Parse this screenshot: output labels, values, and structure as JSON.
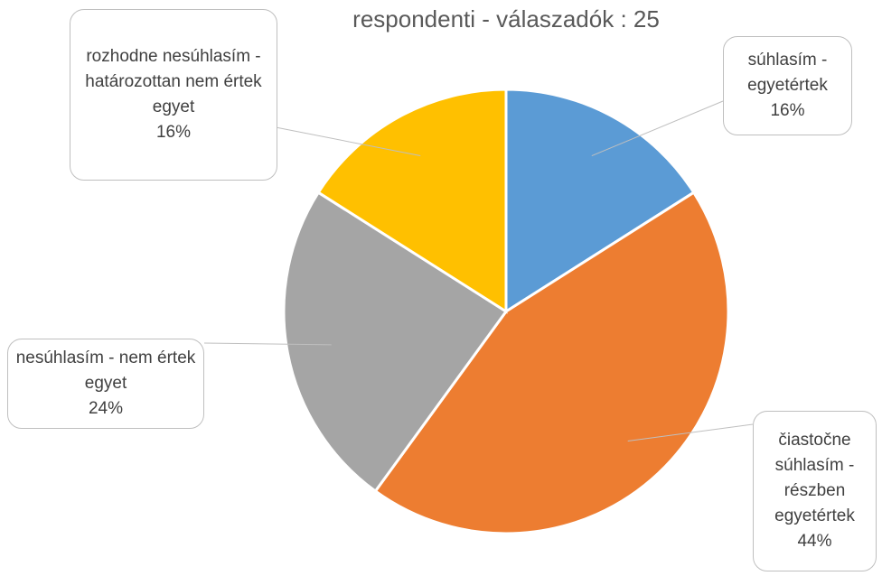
{
  "chart_data": {
    "type": "pie",
    "title": "respondenti - válaszadók : 25",
    "categories": [
      "súhlasím - egyetértek",
      "čiastočne súhlasím - részben egyetértek",
      "nesúhlasím - nem értek egyet",
      "rozhodne nesúhlasím - határozottan nem értek egyet"
    ],
    "values": [
      16,
      44,
      24,
      16
    ],
    "value_labels": [
      "16%",
      "44%",
      "24%",
      "16%"
    ],
    "colors": [
      "#5b9bd5",
      "#ed7d31",
      "#a5a5a5",
      "#ffc000"
    ]
  }
}
